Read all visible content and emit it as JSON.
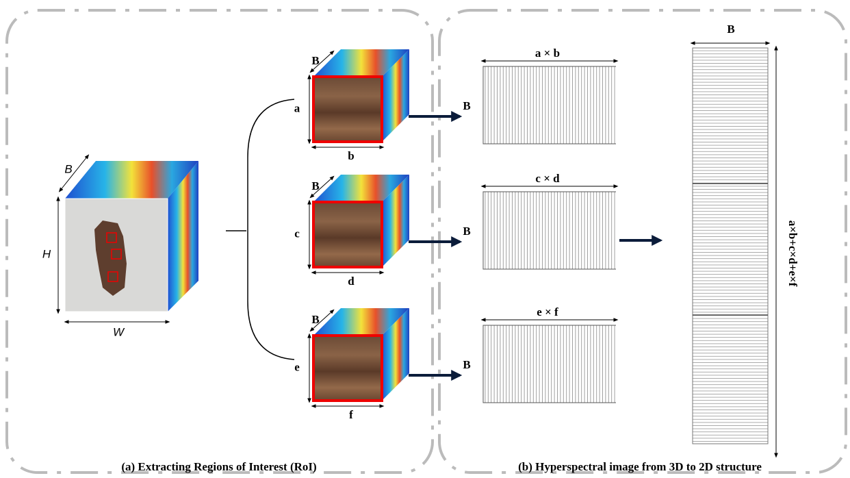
{
  "panel_a": {
    "caption": "(a)  Extracting Regions of Interest (RoI)",
    "cube": {
      "band": "B",
      "height": "H",
      "width": "W"
    },
    "rois": [
      {
        "band": "B",
        "height": "a",
        "width": "b"
      },
      {
        "band": "B",
        "height": "c",
        "width": "d"
      },
      {
        "band": "B",
        "height": "e",
        "width": "f"
      }
    ]
  },
  "panel_b": {
    "caption": "(b)  Hyperspectral image from 3D to 2D structure",
    "matrices": [
      {
        "band": "B",
        "label": "a × b"
      },
      {
        "band": "B",
        "label": "c × d"
      },
      {
        "band": "B",
        "label": "e × f"
      }
    ],
    "stack": {
      "width": "B",
      "height": "a×b+c×d+e×f"
    }
  }
}
